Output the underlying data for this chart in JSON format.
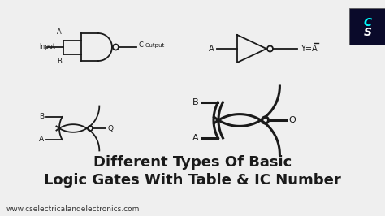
{
  "bg_color": "#efefef",
  "title_line1": "Different Types Of Basic",
  "title_line2": "Logic Gates With Table & IC Number",
  "footer": "www.cselectricalandelectronics.com",
  "title_fontsize": 13,
  "footer_fontsize": 6.5,
  "logo_bg": "#0a0a2a",
  "black": "#1a1a1a"
}
